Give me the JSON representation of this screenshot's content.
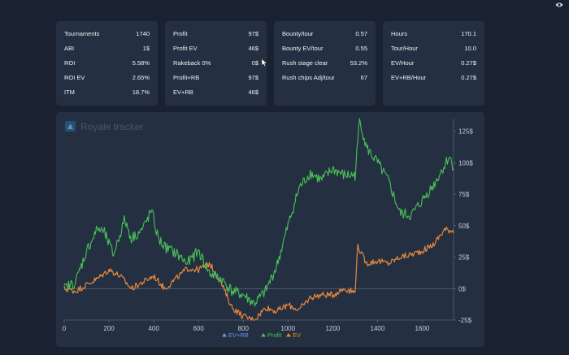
{
  "stats": {
    "col1": [
      {
        "label": "Tournaments",
        "value": "1740"
      },
      {
        "label": "ABI",
        "value": "1$"
      },
      {
        "label": "ROI",
        "value": "5.58%"
      },
      {
        "label": "ROI EV",
        "value": "2.65%"
      },
      {
        "label": "ITM",
        "value": "18.7%"
      }
    ],
    "col2": [
      {
        "label": "Profit",
        "value": "97$"
      },
      {
        "label": "Profit EV",
        "value": "46$"
      },
      {
        "label": "Rakeback 0%",
        "value": "0$"
      },
      {
        "label": "Profit+RB",
        "value": "97$"
      },
      {
        "label": "EV+RB",
        "value": "46$"
      }
    ],
    "col3": [
      {
        "label": "Bounty/tour",
        "value": "0.57"
      },
      {
        "label": "Bounty EV/tour",
        "value": "0.55"
      },
      {
        "label": "Rush stage clear",
        "value": "53.2%"
      },
      {
        "label": "Rush chips Adj/tour",
        "value": "67"
      }
    ],
    "col4": [
      {
        "label": "Hours",
        "value": "170.1"
      },
      {
        "label": "Tour/Hour",
        "value": "10.0"
      },
      {
        "label": "EV/Hour",
        "value": "0.27$"
      },
      {
        "label": "EV+RB/Hour",
        "value": "0.27$"
      }
    ]
  },
  "header_icon": "eye-icon",
  "chart_data": {
    "type": "line",
    "title": "Royale tracker",
    "xlabel": "",
    "ylabel": "",
    "xlim": [
      0,
      1740
    ],
    "ylim": [
      -25,
      135
    ],
    "x_ticks": [
      "0",
      "200",
      "400",
      "600",
      "800",
      "1000",
      "1200",
      "1400",
      "1600"
    ],
    "y_ticks": [
      "-25$",
      "0$",
      "25$",
      "50$",
      "75$",
      "100$",
      "125$"
    ],
    "legend": [
      "EV+RB",
      "Profit",
      "EV"
    ],
    "legend_position": "bottom-center",
    "colors": {
      "ev_rb": "#6f8fe8",
      "profit": "#49c057",
      "ev": "#f0852d",
      "zero_line": "#5c6878",
      "axis": "#6a7585",
      "text": "#c7ccd4"
    },
    "series": [
      {
        "name": "Profit",
        "color": "#49c057",
        "x": [
          0,
          50,
          100,
          150,
          180,
          220,
          270,
          300,
          350,
          390,
          420,
          450,
          500,
          550,
          600,
          650,
          700,
          750,
          800,
          850,
          900,
          950,
          1000,
          1050,
          1100,
          1150,
          1200,
          1250,
          1300,
          1320,
          1350,
          1400,
          1450,
          1500,
          1550,
          1600,
          1650,
          1700,
          1720,
          1740
        ],
        "y": [
          0,
          5,
          30,
          48,
          44,
          27,
          55,
          40,
          47,
          62,
          40,
          33,
          28,
          20,
          30,
          12,
          8,
          -2,
          -5,
          -12,
          -2,
          18,
          50,
          80,
          92,
          86,
          95,
          90,
          90,
          135,
          112,
          100,
          85,
          60,
          58,
          70,
          82,
          98,
          105,
          97
        ]
      },
      {
        "name": "EV",
        "color": "#f0852d",
        "x": [
          0,
          50,
          100,
          150,
          200,
          250,
          300,
          350,
          400,
          450,
          500,
          550,
          600,
          650,
          700,
          750,
          800,
          850,
          900,
          950,
          1000,
          1050,
          1100,
          1150,
          1200,
          1250,
          1300,
          1310,
          1350,
          1400,
          1450,
          1500,
          1550,
          1600,
          1650,
          1700,
          1740
        ],
        "y": [
          0,
          -2,
          3,
          8,
          15,
          10,
          0,
          5,
          10,
          0,
          8,
          16,
          15,
          20,
          5,
          -15,
          -22,
          -25,
          -15,
          -18,
          -13,
          -17,
          -7,
          -5,
          -5,
          0,
          -3,
          34,
          20,
          22,
          20,
          25,
          27,
          30,
          35,
          47,
          46
        ]
      },
      {
        "name": "EV+RB",
        "color": "#6f8fe8",
        "x": [
          0,
          50,
          100,
          150,
          200,
          250,
          300,
          350,
          400,
          450,
          500,
          550,
          600,
          650,
          700,
          750,
          800,
          850,
          900,
          950,
          1000,
          1050,
          1100,
          1150,
          1200,
          1250,
          1300,
          1310,
          1350,
          1400,
          1450,
          1500,
          1550,
          1600,
          1650,
          1700,
          1740
        ],
        "y": [
          0,
          -2,
          3,
          8,
          15,
          10,
          0,
          5,
          10,
          0,
          8,
          16,
          15,
          20,
          5,
          -15,
          -22,
          -25,
          -15,
          -18,
          -13,
          -17,
          -7,
          -5,
          -5,
          0,
          -3,
          34,
          20,
          22,
          20,
          25,
          27,
          30,
          35,
          47,
          46
        ]
      }
    ]
  }
}
